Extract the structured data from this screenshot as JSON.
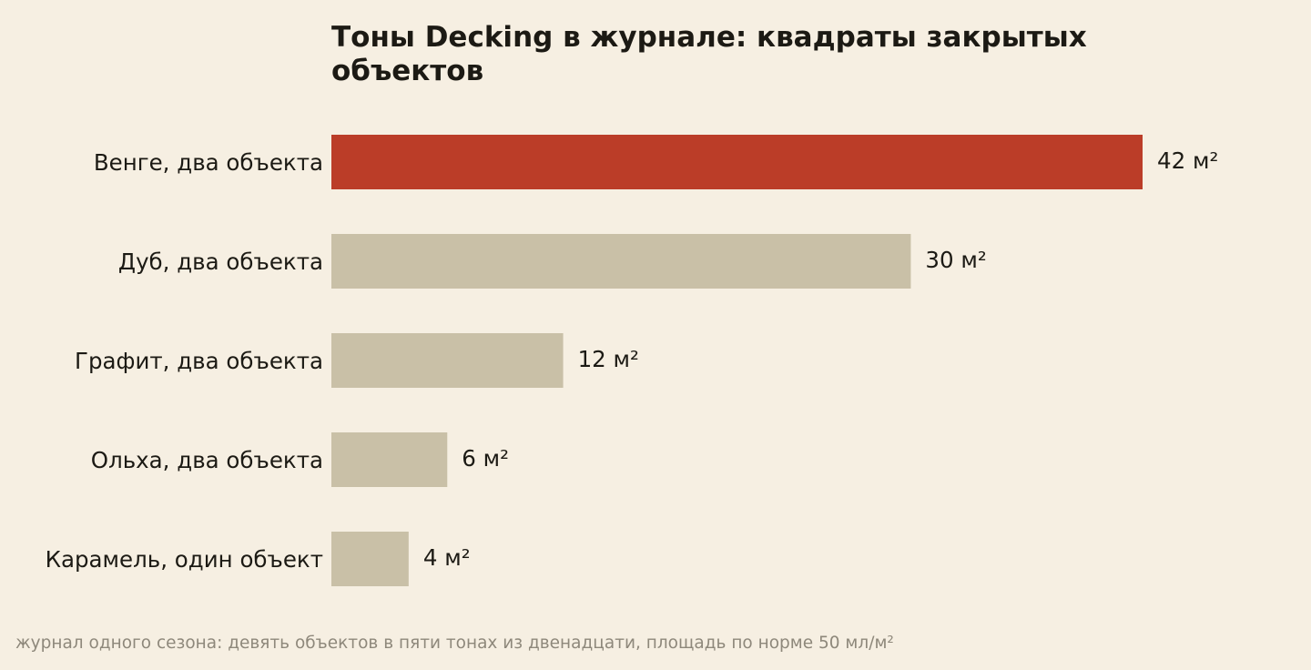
{
  "chart_data": {
    "type": "bar",
    "orientation": "horizontal",
    "title_lines": [
      "Тоны Decking в журнале: квадраты закрытых",
      "объектов"
    ],
    "categories": [
      "Венге, два объекта",
      "Дуб, два объекта",
      "Графит, два объекта",
      "Ольха, два объекта",
      "Карамель, один объект"
    ],
    "values": [
      42,
      30,
      12,
      6,
      4
    ],
    "value_labels": [
      "42 м²",
      "30 м²",
      "12 м²",
      "6 м²",
      "4 м²"
    ],
    "unit": "м²",
    "highlight_index": 0,
    "xlim": [
      0,
      42
    ],
    "grid": false,
    "legend": "none"
  },
  "colors": {
    "background": "#f6efe2",
    "highlight": "#bb3d28",
    "bar": "#c9c0a7",
    "text": "#1c1a14",
    "muted": "#8e887b"
  },
  "footnote": "журнал одного сезона: девять объектов в пяти тонах из двенадцати, площадь по норме 50 мл/м²"
}
